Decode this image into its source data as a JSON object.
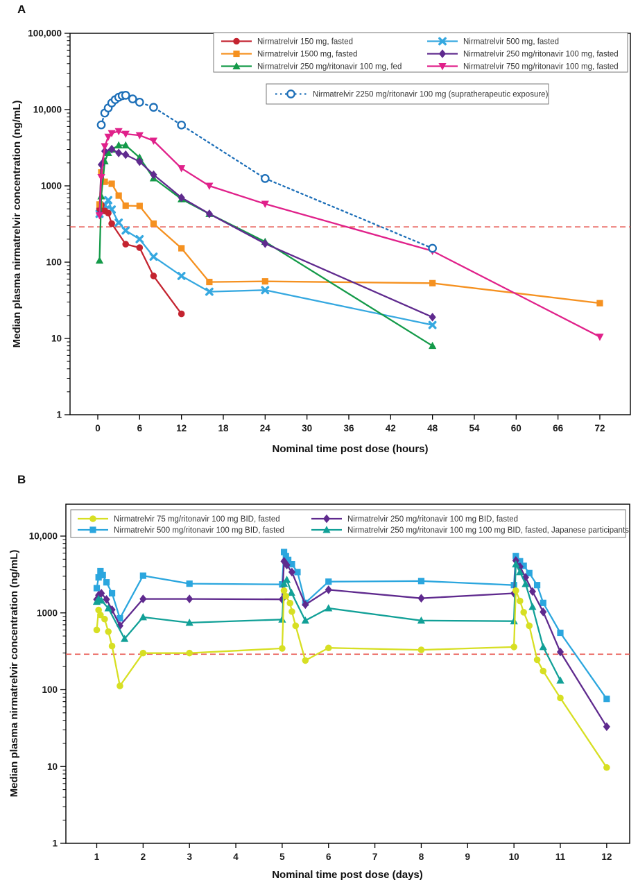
{
  "chart_data": [
    {
      "type": "line",
      "panel_label": "A",
      "xlabel": "Nominal time post dose (hours)",
      "ylabel": "Median plasma nirmatrelvir concentration (ng/mL)",
      "x_ticks": [
        0,
        6,
        12,
        18,
        24,
        30,
        36,
        42,
        48,
        54,
        60,
        66,
        72
      ],
      "y_tick_labels": [
        "1",
        "10",
        "100",
        "1000",
        "10,000",
        "100,000"
      ],
      "y_scale": "log",
      "ylim": [
        1,
        100000
      ],
      "grid": false,
      "threshold_line": {
        "value_ng_ml": 290,
        "color": "#e8534e",
        "style": "dashed"
      },
      "legend_position": "top-right-inside",
      "series": [
        {
          "name": "Nirmatrelvir 150 mg, fasted",
          "color": "#c42430",
          "marker": "circle",
          "line": "solid",
          "points": [
            [
              0.25,
              500
            ],
            [
              0.5,
              560
            ],
            [
              1,
              470
            ],
            [
              1.5,
              440
            ],
            [
              2,
              320
            ],
            [
              4,
              172
            ],
            [
              6,
              155
            ],
            [
              8,
              66
            ],
            [
              12,
              21
            ]
          ]
        },
        {
          "name": "Nirmatrelvir 1500 mg, fasted",
          "color": "#f59120",
          "marker": "square",
          "line": "solid",
          "points": [
            [
              0.25,
              570
            ],
            [
              0.5,
              1500
            ],
            [
              1,
              1130
            ],
            [
              2,
              1065
            ],
            [
              3,
              745
            ],
            [
              4,
              550
            ],
            [
              6,
              545
            ],
            [
              8,
              320
            ],
            [
              12,
              152
            ],
            [
              16,
              55
            ],
            [
              24,
              56
            ],
            [
              48,
              53
            ],
            [
              72,
              29
            ]
          ]
        },
        {
          "name": "Nirmatrelvir 250 mg/ritonavir 100 mg, fed",
          "color": "#149a49",
          "marker": "triangle-up",
          "line": "solid",
          "points": [
            [
              0.25,
              105
            ],
            [
              0.5,
              730
            ],
            [
              1,
              2100
            ],
            [
              1.5,
              2700
            ],
            [
              2,
              3000
            ],
            [
              3,
              3400
            ],
            [
              4,
              3400
            ],
            [
              6,
              2350
            ],
            [
              8,
              1260
            ],
            [
              12,
              670
            ],
            [
              16,
              430
            ],
            [
              24,
              185
            ],
            [
              48,
              8
            ]
          ]
        },
        {
          "name": "Nirmatrelvir 500 mg, fasted",
          "color": "#35a8e0",
          "marker": "x",
          "line": "solid",
          "points": [
            [
              0.25,
              430
            ],
            [
              0.5,
              480
            ],
            [
              1,
              560
            ],
            [
              1.5,
              650
            ],
            [
              2,
              490
            ],
            [
              3,
              330
            ],
            [
              4,
              260
            ],
            [
              6,
              200
            ],
            [
              8,
              118
            ],
            [
              12,
              66
            ],
            [
              16,
              41
            ],
            [
              24,
              43
            ],
            [
              48,
              15
            ]
          ]
        },
        {
          "name": "Nirmatrelvir 250 mg/ritonavir 100 mg, fasted",
          "color": "#5f2a8e",
          "marker": "diamond",
          "line": "solid",
          "points": [
            [
              0.25,
              430
            ],
            [
              0.5,
              1900
            ],
            [
              1,
              2850
            ],
            [
              2,
              3030
            ],
            [
              3,
              2700
            ],
            [
              4,
              2560
            ],
            [
              6,
              2080
            ],
            [
              8,
              1400
            ],
            [
              12,
              700
            ],
            [
              16,
              430
            ],
            [
              24,
              175
            ],
            [
              48,
              19
            ]
          ]
        },
        {
          "name": "Nirmatrelvir 750 mg/ritonavir 100 mg, fasted",
          "color": "#e0218a",
          "marker": "triangle-down",
          "line": "solid",
          "points": [
            [
              0.25,
              410
            ],
            [
              0.5,
              1300
            ],
            [
              1,
              3300
            ],
            [
              1.5,
              4400
            ],
            [
              2,
              4900
            ],
            [
              3,
              5200
            ],
            [
              4,
              4800
            ],
            [
              6,
              4600
            ],
            [
              8,
              3900
            ],
            [
              12,
              1700
            ],
            [
              16,
              1000
            ],
            [
              24,
              580
            ],
            [
              48,
              140
            ],
            [
              72,
              10.5
            ]
          ]
        },
        {
          "name": "Nirmatrelvir 2250 mg/ritonavir 100 mg (supratherapeutic exposure)",
          "color": "#1d6fb8",
          "marker": "circle-open",
          "line": "dotted",
          "points": [
            [
              0.5,
              6300
            ],
            [
              1,
              9000
            ],
            [
              1.5,
              10500
            ],
            [
              2,
              12200
            ],
            [
              2.5,
              13500
            ],
            [
              3,
              14500
            ],
            [
              3.5,
              15200
            ],
            [
              4,
              15400
            ],
            [
              5,
              13800
            ],
            [
              6,
              12500
            ],
            [
              8,
              10700
            ],
            [
              12,
              6270
            ],
            [
              24,
              1250
            ],
            [
              48,
              152
            ]
          ]
        }
      ]
    },
    {
      "type": "line",
      "panel_label": "B",
      "xlabel": "Nominal time post dose (days)",
      "ylabel": "Median plasma nirmatrelvir concentration (ng/mL)",
      "x_ticks": [
        1,
        2,
        3,
        4,
        5,
        6,
        7,
        8,
        9,
        10,
        11,
        12
      ],
      "y_tick_labels": [
        "1",
        "10",
        "100",
        "1000",
        "10,000"
      ],
      "y_scale": "log",
      "ylim": [
        1,
        10000
      ],
      "grid": false,
      "threshold_line": {
        "value_ng_ml": 290,
        "color": "#e8534e",
        "style": "dashed"
      },
      "legend_position": "top-inside",
      "series": [
        {
          "name": "Nirmatrelvir 75 mg/ritonavir 100 mg BID, fasted",
          "color": "#d7df23",
          "marker": "circle",
          "line": "solid",
          "points": [
            [
              1,
              600
            ],
            [
              1.04,
              1090
            ],
            [
              1.08,
              940
            ],
            [
              1.17,
              830
            ],
            [
              1.25,
              570
            ],
            [
              1.33,
              370
            ],
            [
              1.5,
              112
            ],
            [
              2,
              300
            ],
            [
              3,
              300
            ],
            [
              5,
              345
            ],
            [
              5.04,
              1950
            ],
            [
              5.08,
              1650
            ],
            [
              5.17,
              1340
            ],
            [
              5.21,
              1040
            ],
            [
              5.29,
              680
            ],
            [
              5.5,
              240
            ],
            [
              6,
              350
            ],
            [
              8,
              330
            ],
            [
              10,
              360
            ],
            [
              10.04,
              1950
            ],
            [
              10.13,
              1430
            ],
            [
              10.21,
              1020
            ],
            [
              10.33,
              680
            ],
            [
              10.5,
              245
            ],
            [
              10.63,
              175
            ],
            [
              11,
              78
            ],
            [
              12,
              9.7
            ]
          ]
        },
        {
          "name": "Nirmatrelvir 500 mg/ritonavir 100 mg BID, fasted",
          "color": "#2ba6de",
          "marker": "square",
          "line": "solid",
          "points": [
            [
              1,
              2100
            ],
            [
              1.04,
              2900
            ],
            [
              1.08,
              3500
            ],
            [
              1.13,
              3100
            ],
            [
              1.21,
              2500
            ],
            [
              1.33,
              1800
            ],
            [
              1.5,
              850
            ],
            [
              2,
              3050
            ],
            [
              3,
              2400
            ],
            [
              5,
              2350
            ],
            [
              5.04,
              6200
            ],
            [
              5.08,
              5500
            ],
            [
              5.13,
              4900
            ],
            [
              5.21,
              4300
            ],
            [
              5.33,
              3400
            ],
            [
              5.5,
              1350
            ],
            [
              6,
              2550
            ],
            [
              8,
              2600
            ],
            [
              10,
              2300
            ],
            [
              10.04,
              5500
            ],
            [
              10.13,
              4700
            ],
            [
              10.21,
              4100
            ],
            [
              10.33,
              3300
            ],
            [
              10.5,
              2300
            ],
            [
              10.63,
              1350
            ],
            [
              11,
              550
            ],
            [
              12,
              76
            ]
          ]
        },
        {
          "name": "Nirmatrelvir 250 mg/ritonavir 100 mg BID, fasted",
          "color": "#5f2a8e",
          "marker": "diamond",
          "line": "solid",
          "points": [
            [
              1,
              1500
            ],
            [
              1.04,
              1700
            ],
            [
              1.1,
              1800
            ],
            [
              1.21,
              1500
            ],
            [
              1.33,
              1100
            ],
            [
              1.5,
              680
            ],
            [
              2,
              1520
            ],
            [
              3,
              1520
            ],
            [
              5,
              1500
            ],
            [
              5.04,
              4700
            ],
            [
              5.1,
              4200
            ],
            [
              5.21,
              3400
            ],
            [
              5.5,
              1280
            ],
            [
              6,
              2000
            ],
            [
              8,
              1550
            ],
            [
              10,
              1800
            ],
            [
              10.04,
              4800
            ],
            [
              10.13,
              4000
            ],
            [
              10.25,
              2900
            ],
            [
              10.4,
              1900
            ],
            [
              10.63,
              1030
            ],
            [
              11,
              310
            ],
            [
              12,
              33
            ]
          ]
        },
        {
          "name": "Nirmatrelvir 250 mg/ritonavir 100 mg 100 mg BID, fasted, Japanese participants",
          "color": "#11a097",
          "marker": "triangle-up",
          "line": "solid",
          "points": [
            [
              1,
              1400
            ],
            [
              1.04,
              1520
            ],
            [
              1.1,
              1450
            ],
            [
              1.25,
              1150
            ],
            [
              1.6,
              460
            ],
            [
              2,
              880
            ],
            [
              3,
              745
            ],
            [
              5,
              820
            ],
            [
              5.04,
              2400
            ],
            [
              5.1,
              2700
            ],
            [
              5.2,
              1830
            ],
            [
              5.5,
              795
            ],
            [
              6,
              1150
            ],
            [
              8,
              795
            ],
            [
              10,
              780
            ],
            [
              10.04,
              4300
            ],
            [
              10.13,
              3400
            ],
            [
              10.25,
              2380
            ],
            [
              10.4,
              1200
            ],
            [
              10.63,
              360
            ],
            [
              11,
              132
            ]
          ]
        }
      ]
    }
  ]
}
